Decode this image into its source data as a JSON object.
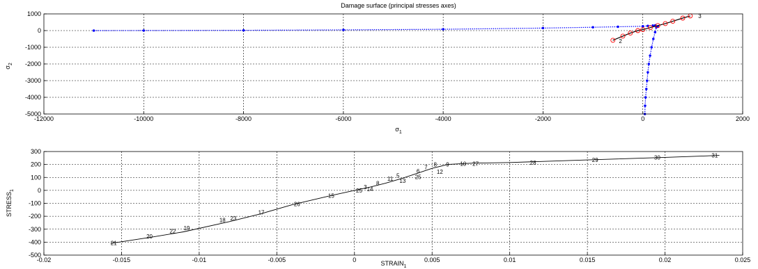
{
  "chart_data": [
    {
      "type": "line",
      "title": "Damage surface (principal stresses axes)",
      "xlabel": "σ",
      "xlabel_sub": "1",
      "ylabel": "σ",
      "ylabel_sub": "2",
      "xlim": [
        -12000,
        2000
      ],
      "ylim": [
        -5000,
        1000
      ],
      "xticks": [
        -12000,
        -10000,
        -8000,
        -6000,
        -4000,
        -2000,
        0,
        2000
      ],
      "yticks": [
        -5000,
        -4000,
        -3000,
        -2000,
        -1000,
        0,
        1000
      ],
      "grid": true,
      "colors": {
        "surface": "#0000ff",
        "path": "#ff0000",
        "points": "#000000"
      },
      "series": [
        {
          "values": [
            [
              -11000,
              0
            ],
            [
              -10000,
              5
            ],
            [
              -8000,
              15
            ],
            [
              -6000,
              40
            ],
            [
              -4000,
              80
            ],
            [
              -2000,
              150
            ],
            [
              -1000,
              200
            ],
            [
              -500,
              230
            ],
            [
              0,
              260
            ],
            [
              100,
              280
            ],
            [
              200,
              300
            ],
            [
              250,
              320
            ]
          ]
        },
        {
          "values": [
            [
              40,
              -5000
            ],
            [
              45,
              -4500
            ],
            [
              55,
              -4000
            ],
            [
              70,
              -3500
            ],
            [
              85,
              -3000
            ],
            [
              100,
              -2500
            ],
            [
              120,
              -2000
            ],
            [
              145,
              -1500
            ],
            [
              175,
              -1000
            ],
            [
              210,
              -500
            ],
            [
              245,
              -100
            ],
            [
              270,
              200
            ],
            [
              300,
              250
            ]
          ]
        },
        {
          "values": [
            [
              -600,
              -580
            ],
            [
              -400,
              -330
            ],
            [
              -250,
              -150
            ],
            [
              -100,
              0
            ],
            [
              0,
              60
            ],
            [
              150,
              180
            ],
            [
              300,
              300
            ],
            [
              450,
              420
            ],
            [
              600,
              560
            ],
            [
              800,
              750
            ],
            [
              950,
              880
            ]
          ]
        }
      ],
      "point_labels": [
        {
          "text": "2",
          "x": -480,
          "y": -620
        },
        {
          "text": "3",
          "x": 1110,
          "y": 880
        }
      ]
    },
    {
      "type": "line",
      "title": "",
      "xlabel": "STRAIN",
      "xlabel_sub": "1",
      "ylabel": "STRESS",
      "ylabel_sub": "1",
      "xlim": [
        -0.02,
        0.025
      ],
      "ylim": [
        -500,
        300
      ],
      "xticks": [
        -0.02,
        -0.015,
        -0.01,
        -0.005,
        0,
        0.005,
        0.01,
        0.015,
        0.02,
        0.025
      ],
      "ytick_values": [
        -500,
        -400,
        -300,
        -200,
        -100,
        0,
        100,
        200,
        300
      ],
      "grid": true,
      "colors": {
        "curve": "#000000"
      },
      "series": [
        {
          "values": [
            [
              -0.0157,
              -410
            ],
            [
              -0.013,
              -360
            ],
            [
              -0.011,
              -320
            ],
            [
              -0.008,
              -240
            ],
            [
              -0.006,
              -180
            ],
            [
              -0.004,
              -110
            ],
            [
              -0.0015,
              -40
            ],
            [
              0,
              0
            ],
            [
              0.001,
              25
            ],
            [
              0.002,
              55
            ],
            [
              0.003,
              90
            ],
            [
              0.004,
              130
            ],
            [
              0.005,
              170
            ],
            [
              0.006,
              200
            ],
            [
              0.0075,
              210
            ],
            [
              0.01,
              215
            ],
            [
              0.015,
              235
            ],
            [
              0.02,
              255
            ],
            [
              0.0235,
              270
            ]
          ]
        }
      ],
      "point_labels": [
        {
          "text": "21",
          "x": -0.0155,
          "y": -405
        },
        {
          "text": "20",
          "x": -0.0132,
          "y": -355
        },
        {
          "text": "22",
          "x": -0.0117,
          "y": -315
        },
        {
          "text": "19",
          "x": -0.0108,
          "y": -290
        },
        {
          "text": "18",
          "x": -0.0085,
          "y": -230
        },
        {
          "text": "23",
          "x": -0.0078,
          "y": -215
        },
        {
          "text": "17",
          "x": -0.006,
          "y": -170
        },
        {
          "text": "26",
          "x": -0.0037,
          "y": -105
        },
        {
          "text": "15",
          "x": -0.0015,
          "y": -40
        },
        {
          "text": "25",
          "x": 0.0003,
          "y": 0
        },
        {
          "text": "3",
          "x": 0.0007,
          "y": 25
        },
        {
          "text": "14",
          "x": 0.001,
          "y": 10
        },
        {
          "text": "8",
          "x": 0.0015,
          "y": 55
        },
        {
          "text": "11",
          "x": 0.0023,
          "y": 90
        },
        {
          "text": "5",
          "x": 0.0028,
          "y": 115
        },
        {
          "text": "13",
          "x": 0.0031,
          "y": 75
        },
        {
          "text": "25",
          "x": 0.0041,
          "y": 105
        },
        {
          "text": "6",
          "x": 0.0041,
          "y": 150
        },
        {
          "text": "7",
          "x": 0.0046,
          "y": 180
        },
        {
          "text": "12",
          "x": 0.0055,
          "y": 145
        },
        {
          "text": "8",
          "x": 0.0052,
          "y": 200
        },
        {
          "text": "9",
          "x": 0.006,
          "y": 200
        },
        {
          "text": "10",
          "x": 0.007,
          "y": 205
        },
        {
          "text": "27",
          "x": 0.0078,
          "y": 205
        },
        {
          "text": "28",
          "x": 0.0115,
          "y": 215
        },
        {
          "text": "29",
          "x": 0.0155,
          "y": 235
        },
        {
          "text": "30",
          "x": 0.0195,
          "y": 255
        },
        {
          "text": "31",
          "x": 0.0232,
          "y": 270
        }
      ]
    }
  ]
}
